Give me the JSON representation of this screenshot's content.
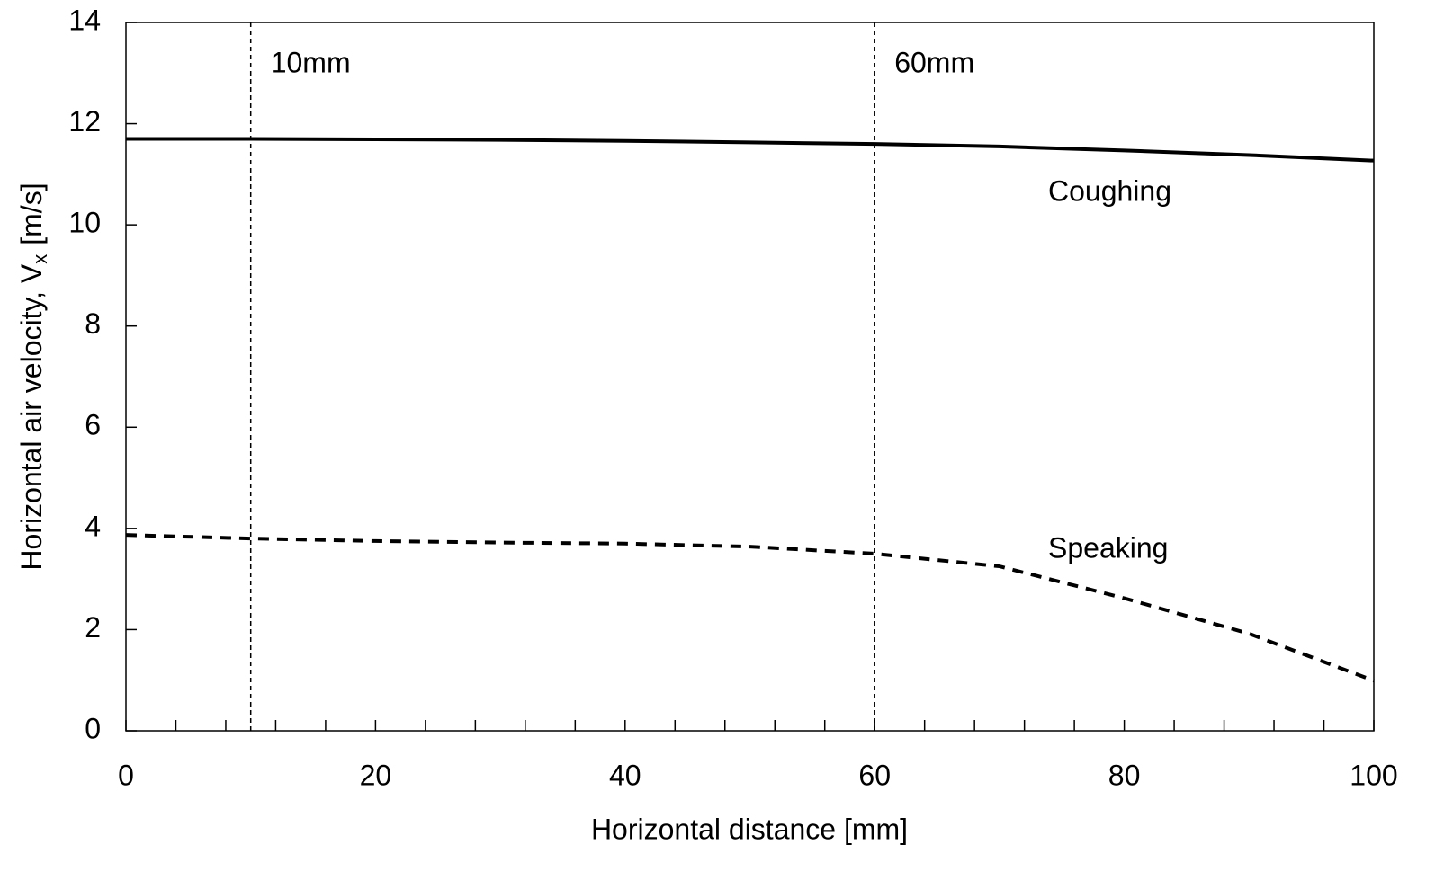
{
  "chart_data": {
    "type": "line",
    "xlabel": "Horizontal distance [mm]",
    "ylabel": {
      "main": "Horizontal air velocity, V",
      "subscript": "x",
      "unit": "[m/s]"
    },
    "x": [
      0,
      10,
      20,
      30,
      40,
      50,
      60,
      70,
      80,
      90,
      100
    ],
    "series": [
      {
        "name": "Coughing",
        "color": "#000000",
        "line_style": "solid",
        "values": [
          11.7,
          11.7,
          11.69,
          11.68,
          11.66,
          11.63,
          11.6,
          11.55,
          11.47,
          11.38,
          11.27
        ]
      },
      {
        "name": "Speaking",
        "color": "#000000",
        "line_style": "dashed",
        "values": [
          3.87,
          3.8,
          3.75,
          3.72,
          3.7,
          3.64,
          3.5,
          3.25,
          2.62,
          1.92,
          0.99
        ]
      }
    ],
    "reference_lines": [
      {
        "x": 10,
        "label": "10mm"
      },
      {
        "x": 60,
        "label": "60mm"
      }
    ],
    "xlim": [
      0,
      100
    ],
    "xticks": [
      0,
      20,
      40,
      60,
      80,
      100
    ],
    "ylim": [
      0,
      14
    ],
    "yticks": [
      0,
      2,
      4,
      6,
      8,
      10,
      12,
      14
    ],
    "grid": false
  }
}
